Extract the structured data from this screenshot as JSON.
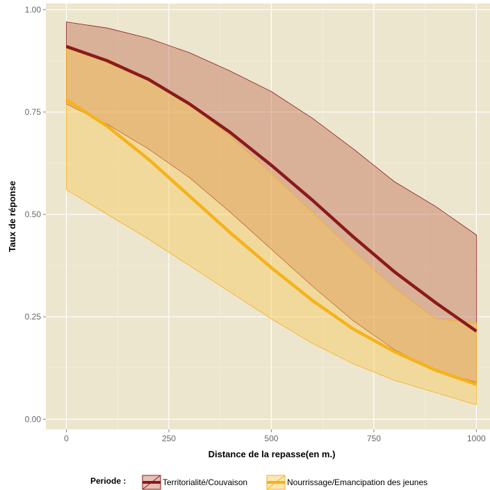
{
  "chart_data": {
    "type": "line",
    "xlabel": "Distance de la repasse(en m.)",
    "ylabel": "Taux de réponse",
    "xlim": [
      -50,
      1035
    ],
    "ylim": [
      -0.025,
      1.015
    ],
    "x_ticks": [
      0,
      250,
      500,
      750,
      1000
    ],
    "y_ticks": [
      0.0,
      0.25,
      0.5,
      0.75,
      1.0
    ],
    "x_tick_labels": [
      "0",
      "250",
      "500",
      "750",
      "1000"
    ],
    "y_tick_labels": [
      "0.00",
      "0.25",
      "0.50",
      "0.75",
      "1.00"
    ],
    "grid": true,
    "legend": {
      "title": "Periode :",
      "position": "bottom"
    },
    "x": [
      0,
      100,
      200,
      300,
      400,
      500,
      600,
      700,
      800,
      900,
      1000
    ],
    "series": [
      {
        "name": "Territorialité/Couvaison",
        "line_color": "#8B1A1A",
        "fill_color": "#B54A32",
        "fill_opacity": 0.35,
        "values": [
          0.91,
          0.875,
          0.83,
          0.77,
          0.7,
          0.62,
          0.535,
          0.445,
          0.36,
          0.285,
          0.215
        ],
        "lower": [
          0.77,
          0.72,
          0.66,
          0.59,
          0.505,
          0.415,
          0.325,
          0.24,
          0.17,
          0.12,
          0.09
        ],
        "upper": [
          0.97,
          0.955,
          0.93,
          0.895,
          0.85,
          0.8,
          0.735,
          0.66,
          0.58,
          0.52,
          0.45
        ]
      },
      {
        "name": "Nourrissage/Emancipation des jeunes",
        "line_color": "#F5B21B",
        "fill_color": "#F7C95A",
        "fill_opacity": 0.45,
        "values": [
          0.78,
          0.715,
          0.635,
          0.545,
          0.455,
          0.37,
          0.29,
          0.22,
          0.165,
          0.12,
          0.085
        ],
        "lower": [
          0.56,
          0.5,
          0.44,
          0.375,
          0.31,
          0.245,
          0.185,
          0.135,
          0.095,
          0.065,
          0.035
        ],
        "upper": [
          0.905,
          0.88,
          0.83,
          0.77,
          0.69,
          0.6,
          0.505,
          0.41,
          0.32,
          0.245,
          0.235
        ]
      }
    ]
  }
}
